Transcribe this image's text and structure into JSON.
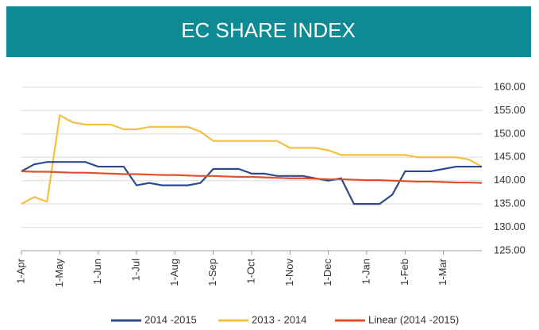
{
  "chart_data": {
    "type": "line",
    "title": "EC SHARE INDEX",
    "categories": [
      "1-Apr",
      null,
      null,
      "1-May",
      null,
      null,
      "1-Jun",
      null,
      null,
      "1-Jul",
      null,
      null,
      "1-Aug",
      null,
      null,
      "1-Sep",
      null,
      null,
      "1-Oct",
      null,
      null,
      "1-Nov",
      null,
      null,
      "1-Dec",
      null,
      null,
      "1-Jan",
      null,
      null,
      "1-Feb",
      null,
      null,
      "1-Mar",
      null,
      null,
      null
    ],
    "series": [
      {
        "name": "2014 -2015",
        "color": "#2e4a8f",
        "values": [
          142,
          143.5,
          144,
          144,
          144,
          144,
          143,
          143,
          143,
          139,
          139.5,
          139,
          139,
          139,
          139.5,
          142.5,
          142.5,
          142.5,
          141.5,
          141.5,
          141,
          141,
          141,
          140.5,
          140,
          140.5,
          135,
          135,
          135,
          137,
          142,
          142,
          142,
          142.5,
          143,
          143,
          143
        ]
      },
      {
        "name": "2013 - 2014",
        "color": "#f5c040",
        "values": [
          135,
          136.5,
          135.5,
          154,
          152.5,
          152,
          152,
          152,
          151,
          151,
          151.5,
          151.5,
          151.5,
          151.5,
          150.5,
          148.5,
          148.5,
          148.5,
          148.5,
          148.5,
          148.5,
          147,
          147,
          147,
          146.5,
          145.5,
          145.5,
          145.5,
          145.5,
          145.5,
          145.5,
          145,
          145,
          145,
          145,
          144.5,
          143
        ]
      },
      {
        "name": "Linear (2014 -2015)",
        "color": "#e0502a",
        "values": [
          142.0,
          141.9,
          141.9,
          141.8,
          141.7,
          141.7,
          141.6,
          141.5,
          141.4,
          141.4,
          141.3,
          141.2,
          141.2,
          141.1,
          141.0,
          141.0,
          140.9,
          140.8,
          140.8,
          140.7,
          140.6,
          140.5,
          140.5,
          140.4,
          140.3,
          140.3,
          140.2,
          140.1,
          140.1,
          140.0,
          139.9,
          139.8,
          139.8,
          139.7,
          139.6,
          139.6,
          139.5
        ]
      }
    ],
    "ylim": [
      125,
      160
    ],
    "yticks": [
      {
        "value": 125,
        "label": "125.00"
      },
      {
        "value": 130,
        "label": "130.00"
      },
      {
        "value": 135,
        "label": "135.00"
      },
      {
        "value": 140,
        "label": "140.00"
      },
      {
        "value": 145,
        "label": "145.00"
      },
      {
        "value": 150,
        "label": "150.00"
      },
      {
        "value": 155,
        "label": "155.00"
      },
      {
        "value": 160,
        "label": "160.00"
      }
    ],
    "grid": true,
    "legend": "bottom"
  }
}
